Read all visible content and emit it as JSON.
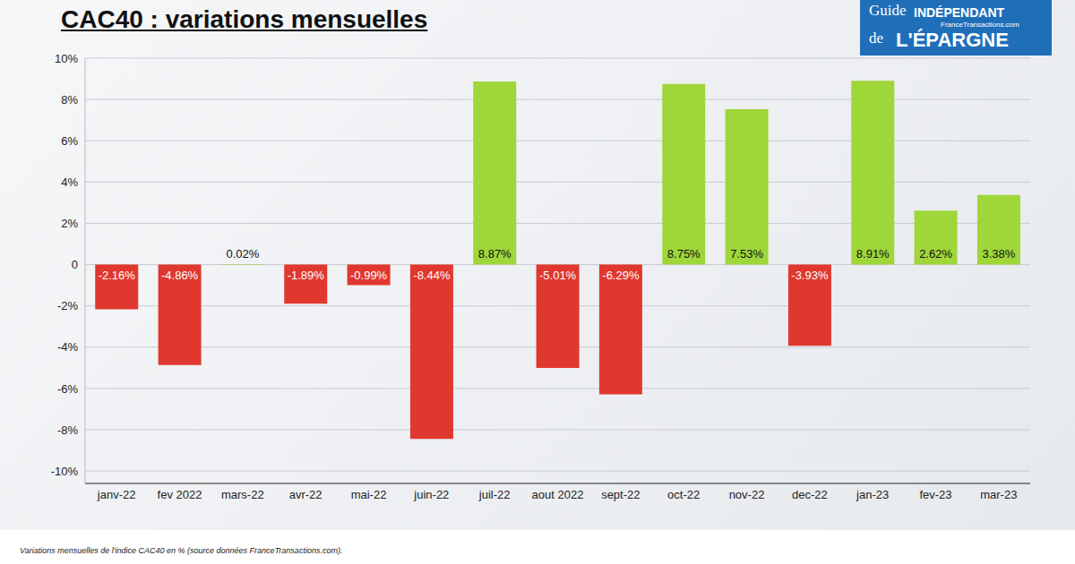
{
  "chart_data": {
    "type": "bar",
    "title": "CAC40 : variations mensuelles",
    "annotations": [
      "Variations mensuelles de l'indice CAC40 en % (source données FranceTransactions.com).",
      "Guide",
      "INDÉPENDANT",
      "FranceTransactions.com",
      "de",
      "L'ÉPARGNE"
    ],
    "categories": [
      "janv-22",
      "fev 2022",
      "mars-22",
      "avr-22",
      "mai-22",
      "juin-22",
      "juil-22",
      "aout 2022",
      "sept-22",
      "oct-22",
      "nov-22",
      "dec-22",
      "jan-23",
      "fev-23",
      "mar-23"
    ],
    "values": [
      -2.16,
      -4.86,
      0.02,
      -1.89,
      -0.99,
      -8.44,
      8.87,
      -5.01,
      -6.29,
      8.75,
      7.53,
      -3.93,
      8.91,
      2.62,
      3.38
    ],
    "value_labels": [
      "-2.16%",
      "-4.86%",
      "0.02%",
      "-1.89%",
      "-0.99%",
      "-8.44%",
      "8.87%",
      "-5.01%",
      "-6.29%",
      "8.75%",
      "7.53%",
      "-3.93%",
      "8.91%",
      "2.62%",
      "3.38%"
    ],
    "colors": [
      "#e0382f",
      "#e0382f",
      "#9fd63a",
      "#e0382f",
      "#e0382f",
      "#e0382f",
      "#9fd63a",
      "#e0382f",
      "#e0382f",
      "#9fd63a",
      "#9fd63a",
      "#e0382f",
      "#9fd63a",
      "#9fd63a",
      "#9fd63a"
    ],
    "ylim": [
      -10.6,
      10
    ],
    "yticks": [
      {
        "value": -10,
        "label": "-10%"
      },
      {
        "value": -8,
        "label": "-8%"
      },
      {
        "value": -6,
        "label": "-6%"
      },
      {
        "value": -4,
        "label": "-4%"
      },
      {
        "value": -2,
        "label": "-2%"
      },
      0,
      {
        "value": 2,
        "label": "2%"
      },
      {
        "value": 4,
        "label": "4%"
      },
      {
        "value": 6,
        "label": "6%"
      },
      {
        "value": 8,
        "label": "8%"
      },
      {
        "value": 10,
        "label": "10%"
      }
    ],
    "grid": true,
    "data_labels": true
  }
}
